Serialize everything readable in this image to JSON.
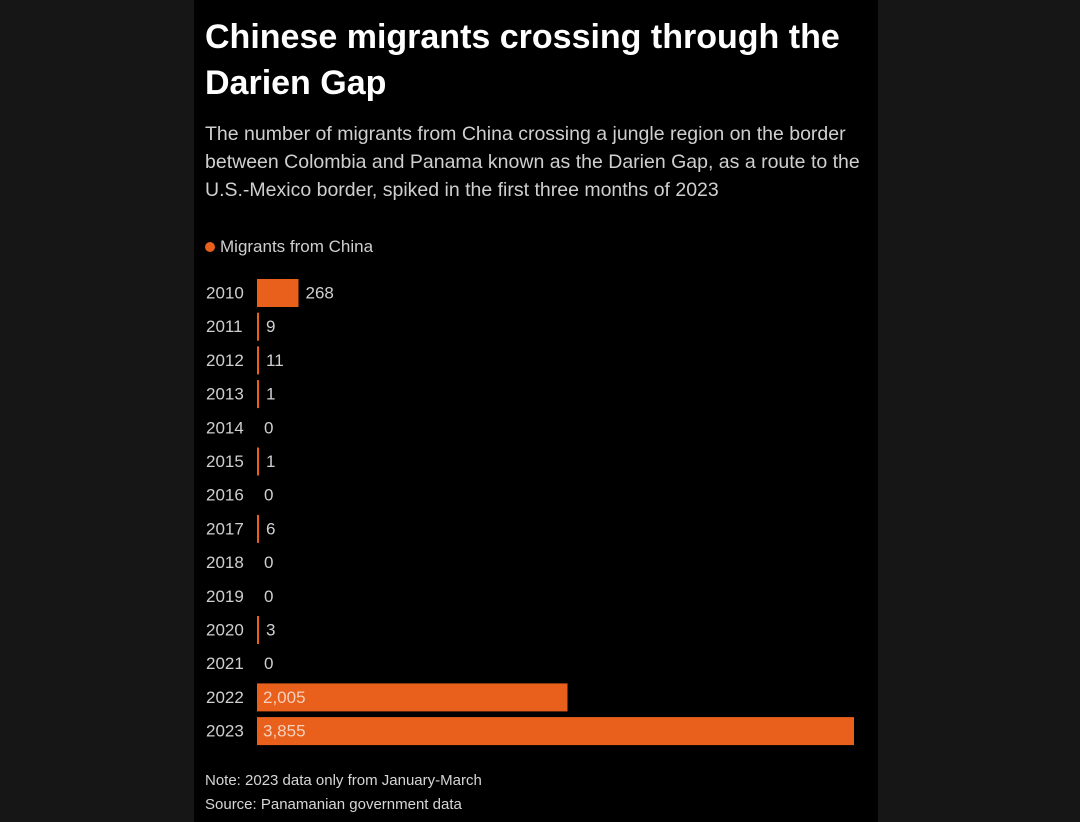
{
  "header": {
    "title": "Chinese migrants crossing through the Darien Gap",
    "subtitle": "The number of migrants from China crossing a jungle region on the border between Colombia and Panama  known as the Darien Gap, as a route to the U.S.-Mexico border, spiked in the first three months of 2023"
  },
  "legend": {
    "label": "Migrants from China"
  },
  "colors": {
    "bar": "#e8601c",
    "background": "#000000",
    "text": "#cfcfcf"
  },
  "chart_data": {
    "type": "bar",
    "orientation": "horizontal",
    "categories": [
      "2010",
      "2011",
      "2012",
      "2013",
      "2014",
      "2015",
      "2016",
      "2017",
      "2018",
      "2019",
      "2020",
      "2021",
      "2022",
      "2023"
    ],
    "series": [
      {
        "name": "Migrants from China",
        "values": [
          268,
          9,
          11,
          1,
          0,
          1,
          0,
          6,
          0,
          0,
          3,
          0,
          2005,
          3855
        ],
        "labels": [
          "268",
          "9",
          "11",
          "1",
          "0",
          "1",
          "0",
          "6",
          "0",
          "0",
          "3",
          "0",
          "2,005",
          "3,855"
        ]
      }
    ],
    "xlim": [
      0,
      3855
    ],
    "grid": false,
    "legend_position": "top-left"
  },
  "footer": {
    "note": "Note: 2023 data only from January-March",
    "source": "Source: Panamanian government data"
  }
}
